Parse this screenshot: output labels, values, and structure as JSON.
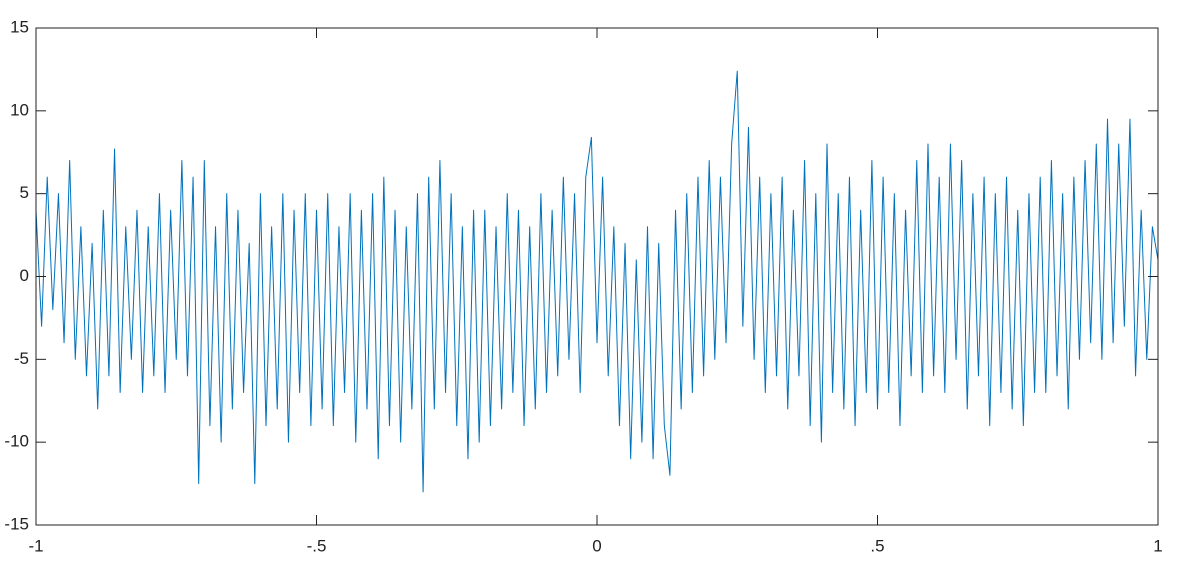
{
  "chart_data": {
    "type": "line",
    "x": [
      -1,
      -0.99,
      -0.98,
      -0.97,
      -0.96,
      -0.95,
      -0.94,
      -0.93,
      -0.92,
      -0.91,
      -0.9,
      -0.89,
      -0.88,
      -0.87,
      -0.86,
      -0.85,
      -0.84,
      -0.83,
      -0.82,
      -0.81,
      -0.8,
      -0.79,
      -0.78,
      -0.77,
      -0.76,
      -0.75,
      -0.74,
      -0.73,
      -0.72,
      -0.71,
      -0.7,
      -0.69,
      -0.68,
      -0.67,
      -0.66,
      -0.65,
      -0.64,
      -0.63,
      -0.62,
      -0.61,
      -0.6,
      -0.59,
      -0.58,
      -0.57,
      -0.56,
      -0.55,
      -0.54,
      -0.53,
      -0.52,
      -0.51,
      -0.5,
      -0.49,
      -0.48,
      -0.47,
      -0.46,
      -0.45,
      -0.44,
      -0.43,
      -0.42,
      -0.41,
      -0.4,
      -0.39,
      -0.38,
      -0.37,
      -0.36,
      -0.35,
      -0.34,
      -0.33,
      -0.32,
      -0.31,
      -0.3,
      -0.29,
      -0.28,
      -0.27,
      -0.26,
      -0.25,
      -0.24,
      -0.23,
      -0.22,
      -0.21,
      -0.2,
      -0.19,
      -0.18,
      -0.17,
      -0.16,
      -0.15,
      -0.14,
      -0.13,
      -0.12,
      -0.11,
      -0.1,
      -0.09,
      -0.08,
      -0.07,
      -0.06,
      -0.05,
      -0.04,
      -0.03,
      -0.02,
      -0.01,
      0,
      0.01,
      0.02,
      0.03,
      0.04,
      0.05,
      0.06,
      0.07,
      0.08,
      0.09,
      0.1,
      0.11,
      0.12,
      0.13,
      0.14,
      0.15,
      0.16,
      0.17,
      0.18,
      0.19,
      0.2,
      0.21,
      0.22,
      0.23,
      0.24,
      0.25,
      0.26,
      0.27,
      0.28,
      0.29,
      0.3,
      0.31,
      0.32,
      0.33,
      0.34,
      0.35,
      0.36,
      0.37,
      0.38,
      0.39,
      0.4,
      0.41,
      0.42,
      0.43,
      0.44,
      0.45,
      0.46,
      0.47,
      0.48,
      0.49,
      0.5,
      0.51,
      0.52,
      0.53,
      0.54,
      0.55,
      0.56,
      0.57,
      0.58,
      0.59,
      0.6,
      0.61,
      0.62,
      0.63,
      0.64,
      0.65,
      0.66,
      0.67,
      0.68,
      0.69,
      0.7,
      0.71,
      0.72,
      0.73,
      0.74,
      0.75,
      0.76,
      0.77,
      0.78,
      0.79,
      0.8,
      0.81,
      0.82,
      0.83,
      0.84,
      0.85,
      0.86,
      0.87,
      0.88,
      0.89,
      0.9,
      0.91,
      0.92,
      0.93,
      0.94,
      0.95,
      0.96,
      0.97,
      0.98,
      0.99,
      1
    ],
    "series": [
      {
        "color": "#0072bd",
        "values": [
          4,
          -3,
          6,
          -2,
          5,
          -4,
          7,
          -5,
          3,
          -6,
          2,
          -8,
          4,
          -6,
          7.7,
          -7,
          3,
          -5,
          4,
          -7,
          3,
          -6,
          5,
          -7,
          4,
          -5,
          7,
          -6,
          6,
          -12.5,
          7,
          -9,
          3,
          -10,
          5,
          -8,
          4,
          -7,
          2,
          -12.5,
          5,
          -9,
          3,
          -8,
          5,
          -10,
          4,
          -7,
          5,
          -9,
          4,
          -8,
          5,
          -9,
          3,
          -7,
          5,
          -10,
          4,
          -8,
          5,
          -11,
          6,
          -9,
          4,
          -10,
          3,
          -8,
          5,
          -13,
          6,
          -8,
          7,
          -7,
          5,
          -9,
          3,
          -11,
          4,
          -10,
          4,
          -9,
          3,
          -8,
          5,
          -7,
          4,
          -9,
          3,
          -8,
          5,
          -7,
          4,
          -6,
          6,
          -5,
          5,
          -7,
          6,
          8.4,
          -4,
          6,
          -6,
          3,
          -9,
          2,
          -11,
          1,
          -10,
          3,
          -11,
          2,
          -9,
          -12,
          4,
          -8,
          5,
          -7,
          6,
          -6,
          7,
          -5,
          6,
          -4,
          8,
          12.4,
          -3,
          9,
          -5,
          6,
          -7,
          5,
          -6,
          6,
          -8,
          4,
          -6,
          7,
          -9,
          5,
          -10,
          8,
          -7,
          5,
          -8,
          6,
          -9,
          4,
          -7,
          7,
          -8,
          6,
          -7,
          5,
          -9,
          4,
          -6,
          7,
          -7,
          8,
          -6,
          6,
          -7,
          8,
          -5,
          7,
          -8,
          5,
          -6,
          6,
          -9,
          5,
          -7,
          6,
          -8,
          4,
          -9,
          5,
          -7,
          6,
          -7,
          7,
          -6,
          5,
          -8,
          6,
          -5,
          7,
          -4,
          8,
          -5,
          9.5,
          -4,
          8,
          -3,
          9.5,
          -6,
          4,
          -5,
          3,
          1
        ]
      }
    ],
    "xlim": [
      -1,
      1
    ],
    "xticks": [
      -1,
      {
        "value": -0.5,
        "label": "-.5"
      },
      0,
      {
        "value": 0.5,
        "label": ".5"
      },
      1
    ],
    "ylim": [
      -15,
      15
    ],
    "yticks": [
      -15,
      -10,
      -5,
      0,
      5,
      10,
      15
    ]
  }
}
